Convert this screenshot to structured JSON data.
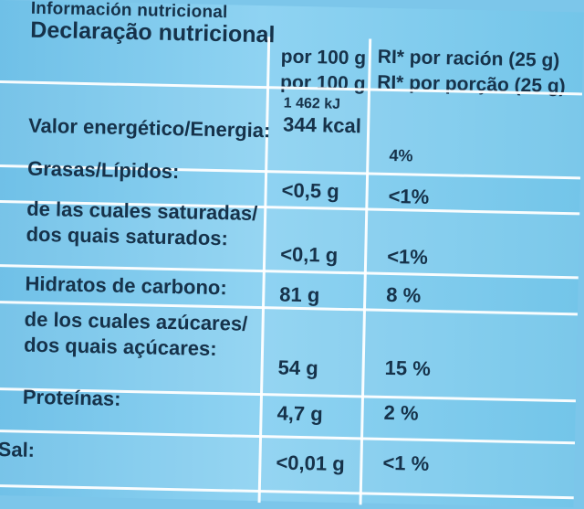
{
  "header": {
    "top_label": "Información nutricional",
    "main_label": "Declaração nutricional"
  },
  "columns": {
    "per100_lines": [
      "por 100 g",
      "por 100 g"
    ],
    "ri_lines": [
      "RI* por ración (25 g)",
      "RI* por porção (25 g)"
    ]
  },
  "rows": [
    {
      "name_lines": [
        "Valor energético/Energia:"
      ],
      "value_lines": [
        "1 462 kJ",
        "344 kcal"
      ],
      "ri": "4%"
    },
    {
      "name_lines": [
        "Grasas/Lípidos:"
      ],
      "value_lines": [
        "<0,5 g"
      ],
      "ri": "<1%"
    },
    {
      "name_lines": [
        "de las cuales saturadas/",
        "dos quais saturados:"
      ],
      "value_lines": [
        "<0,1 g"
      ],
      "ri": "<1%"
    },
    {
      "name_lines": [
        "Hidratos de carbono:"
      ],
      "value_lines": [
        "81 g"
      ],
      "ri": "8 %"
    },
    {
      "name_lines": [
        "de los cuales azúcares/",
        "dos quais açúcares:"
      ],
      "value_lines": [
        "54 g"
      ],
      "ri": "15 %"
    },
    {
      "name_lines": [
        "Proteínas:"
      ],
      "value_lines": [
        "4,7 g"
      ],
      "ri": "2 %"
    },
    {
      "name_lines": [
        "Sal:"
      ],
      "value_lines": [
        "<0,01 g"
      ],
      "ri": "<1 %"
    }
  ]
}
